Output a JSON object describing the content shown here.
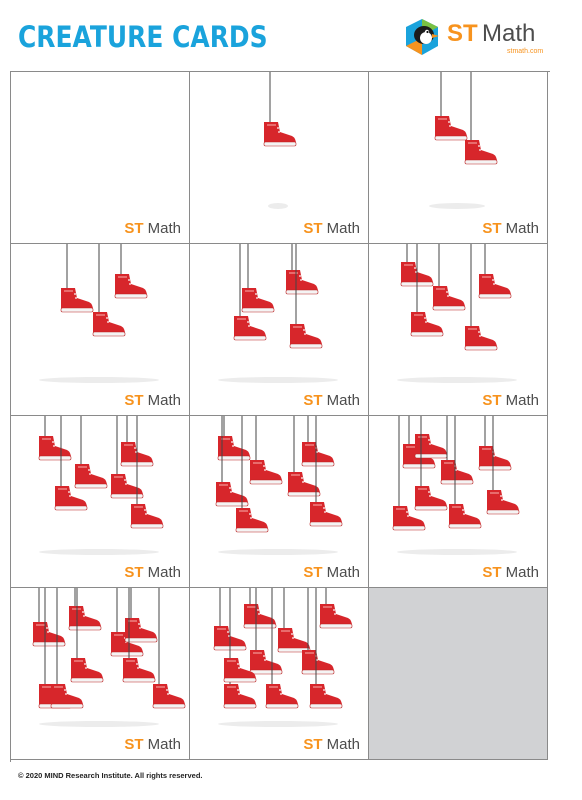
{
  "header": {
    "title": "CREATURE CARDS"
  },
  "brand": {
    "st": "ST",
    "math": "Math",
    "url": "stmath.com"
  },
  "card_logo": {
    "st": "ST",
    "math": "Math"
  },
  "cards": [
    {
      "count": 0
    },
    {
      "count": 1
    },
    {
      "count": 2
    },
    {
      "count": 3
    },
    {
      "count": 4
    },
    {
      "count": 5
    },
    {
      "count": 6
    },
    {
      "count": 7
    },
    {
      "count": 8
    },
    {
      "count": 9
    },
    {
      "count": 10
    },
    {
      "count": null
    }
  ],
  "colors": {
    "title": "#1aa3dc",
    "accent": "#f7931e",
    "boot": "#d7262b",
    "blank_card": "#d1d2d4"
  },
  "icons": {
    "creature": "red-boot-icon",
    "brand": "penguin-logo-icon"
  },
  "footer": {
    "copyright": "© 2020 MIND Research Institute.  All rights reserved."
  }
}
